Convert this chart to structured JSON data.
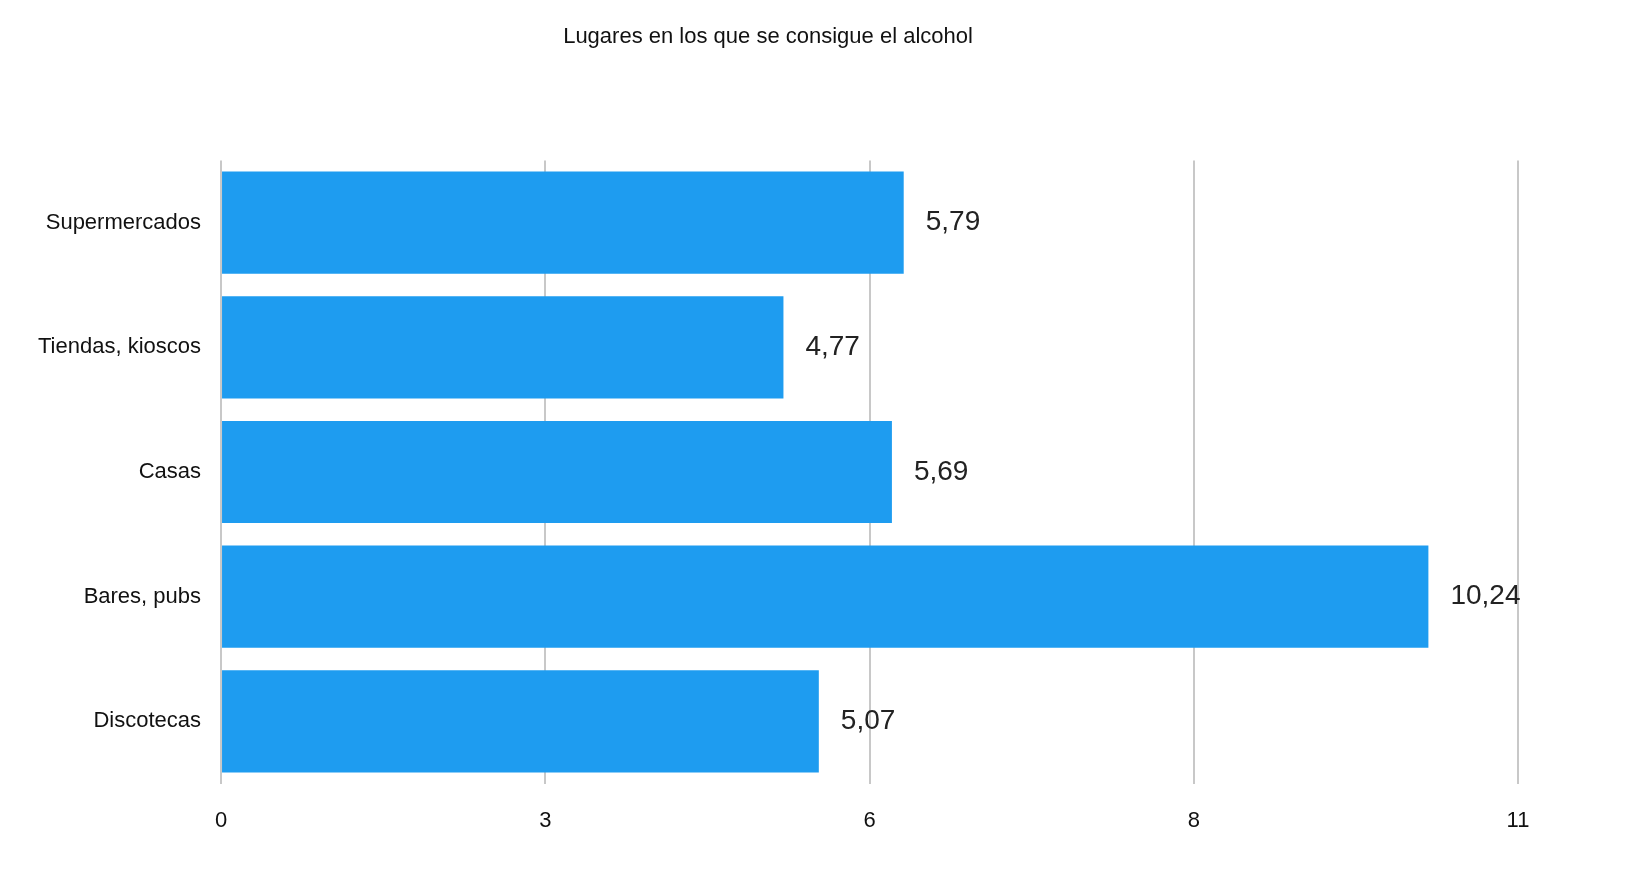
{
  "chart_data": {
    "type": "bar",
    "orientation": "horizontal",
    "title": "Lugares en los que se consigue el alcohol",
    "categories": [
      "Supermercados",
      "Tiendas, kioscos",
      "Casas",
      "Bares, pubs",
      "Discotecas"
    ],
    "values": [
      5.79,
      4.77,
      5.69,
      10.24,
      5.07
    ],
    "value_labels": [
      "5,79",
      "4,77",
      "5,69",
      "10,24",
      "5,07"
    ],
    "color": "#1e9cf0",
    "xlim": [
      0,
      11
    ],
    "xticks": [
      0,
      {
        "value": 2.75,
        "label": "3"
      },
      {
        "value": 5.5,
        "label": "6"
      },
      {
        "value": 8.25,
        "label": "8"
      },
      11
    ],
    "grid": "x",
    "legend": false
  }
}
